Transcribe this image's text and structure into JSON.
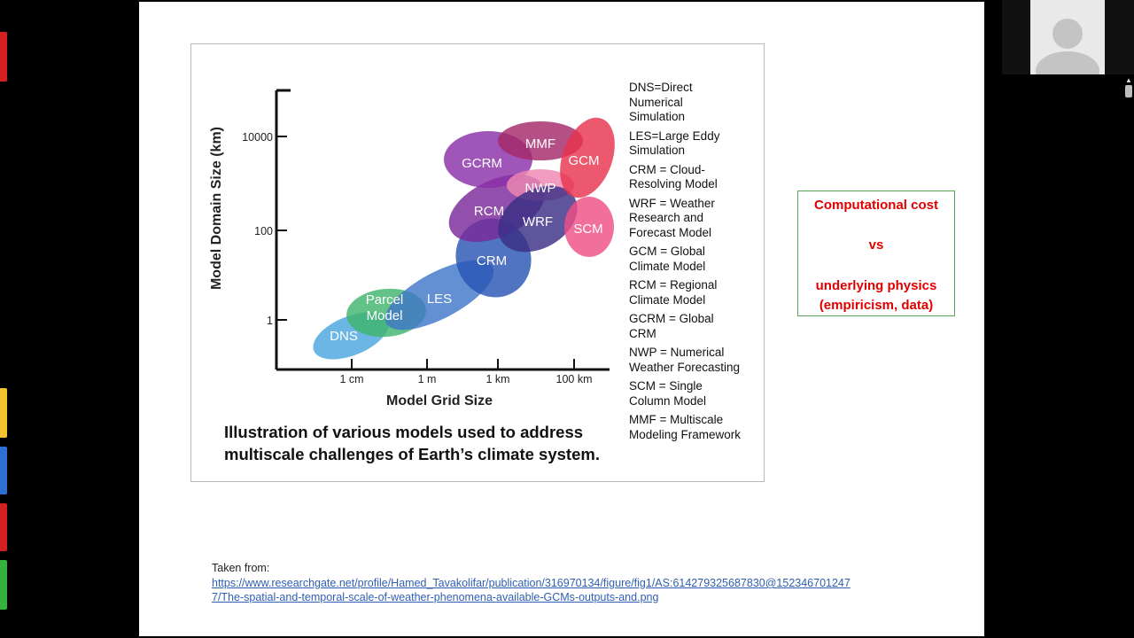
{
  "chart_data": {
    "type": "scatter",
    "title": "",
    "xlabel": "Model Grid Size",
    "ylabel": "Model Domain Size (km)",
    "x_ticks": [
      "1 cm",
      "1 m",
      "1 km",
      "100 km"
    ],
    "y_ticks": [
      "10000",
      "100",
      "1"
    ],
    "regions": [
      {
        "name": "DNS",
        "color": "#4aa6de"
      },
      {
        "name": "Parcel\nModel",
        "color": "#3fb56d"
      },
      {
        "name": "LES",
        "color": "#3f77c8"
      },
      {
        "name": "CRM",
        "color": "#2a55b5"
      },
      {
        "name": "RCM",
        "color": "#7a2a9a"
      },
      {
        "name": "GCRM",
        "color": "#8b2fa8"
      },
      {
        "name": "MMF",
        "color": "#a32a6a"
      },
      {
        "name": "NWP",
        "color": "#ef87b2"
      },
      {
        "name": "WRF",
        "color": "#3b2f86"
      },
      {
        "name": "GCM",
        "color": "#e8334d"
      },
      {
        "name": "SCM",
        "color": "#ef4f86"
      }
    ]
  },
  "legend": [
    "DNS=Direct\nNumerical\nSimulation",
    "LES=Large Eddy\nSimulation",
    "CRM = Cloud-\nResolving Model",
    "WRF = Weather\nResearch and\nForecast Model",
    "GCM = Global\nClimate Model",
    "RCM = Regional\nClimate Model",
    "GCRM = Global\nCRM",
    "NWP = Numerical\nWeather Forecasting",
    "SCM = Single\nColumn Model",
    "MMF = Multiscale\nModeling Framework"
  ],
  "caption": "Illustration of various models used to address\nmultiscale challenges of Earth’s climate system.",
  "cost_box": {
    "line1": "Computational cost",
    "line2": "vs",
    "line3": "underlying physics\n(empiricism, data)"
  },
  "source": {
    "label": "Taken from:",
    "link_line1": "https://www.researchgate.net/profile/Hamed_Tavakolifar/publication/316970134/figure/fig1/AS:614279325687830@152346701247",
    "link_line2": "7/The-spatial-and-temporal-scale-of-weather-phenomena-available-GCMs-outputs-and.png"
  },
  "colors": {
    "caption_accent": "#e00000",
    "box_border": "#5aa55a",
    "link": "#2f5fb3"
  },
  "icons": [
    "person-avatar-icon",
    "scroll-up-arrow-icon"
  ]
}
